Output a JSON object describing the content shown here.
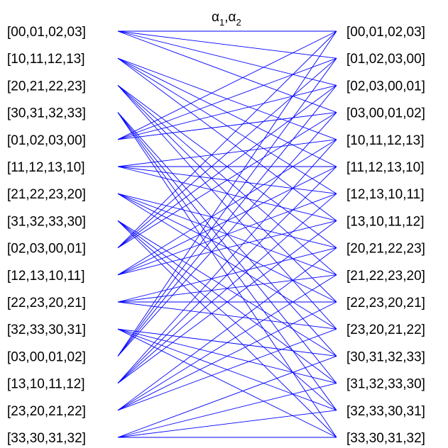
{
  "title": {
    "symbol": "α",
    "index1": "1",
    "separator": ",",
    "index2": "2"
  },
  "colors": {
    "edge": "#0000ff",
    "text": "#000000",
    "background": "#ffffff"
  },
  "left_nodes": [
    "[00,01,02,03]",
    "[10,11,12,13]",
    "[20,21,22,23]",
    "[30,31,32,33]",
    "[01,02,03,00]",
    "[11,12,13,10]",
    "[21,22,23,20]",
    "[31,32,33,30]",
    "[02,03,00,01]",
    "[12,13,10,11]",
    "[22,23,20,21]",
    "[32,33,30,31]",
    "[03,00,01,02]",
    "[13,10,11,12]",
    "[23,20,21,22]",
    "[33,30,31,32]"
  ],
  "right_nodes": [
    "[00,01,02,03]",
    "[01,02,03,00]",
    "[02,03,00,01]",
    "[03,00,01,02]",
    "[10,11,12,13]",
    "[11,12,13,10]",
    "[12,13,10,11]",
    "[13,10,11,12]",
    "[20,21,22,23]",
    "[21,22,23,20]",
    "[22,23,20,21]",
    "[23,20,21,22]",
    "[30,31,32,33]",
    "[31,32,33,30]",
    "[32,33,30,31]",
    "[33,30,31,32]"
  ]
}
